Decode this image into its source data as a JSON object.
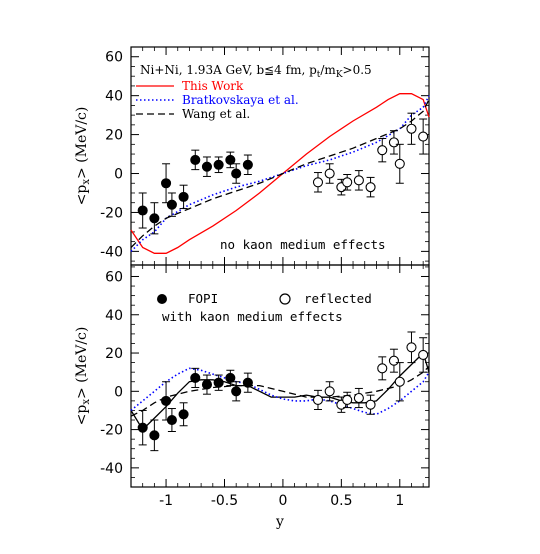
{
  "chart_data": [
    {
      "type": "line",
      "panel": "top",
      "header": "Ni+Ni, 1.93A GeV, b≦4 fm, p",
      "header_sub1": "t",
      "header_mid": "/m",
      "header_sub2": "K",
      "header_tail": ">0.5",
      "annotation": "no kaon medium effects",
      "ylabel": "<p",
      "ylabel_sub": "x",
      "ylabel_tail": "> (MeV/c)",
      "xlim": [
        -1.3,
        1.25
      ],
      "ylim": [
        -47,
        65
      ],
      "yticks": [
        -40,
        -20,
        0,
        20,
        40,
        60
      ],
      "xticks": [
        -1,
        -0.5,
        0,
        0.5,
        1
      ],
      "legend": [
        {
          "label": "This Work",
          "color": "#ff0000",
          "style": "solid"
        },
        {
          "label": "Bratkovskaya et al.",
          "color": "#0000ff",
          "style": "dotted"
        },
        {
          "label": "Wang et al.",
          "color": "#000000",
          "style": "dashed"
        }
      ],
      "series": [
        {
          "name": "This Work",
          "color": "#ff0000",
          "style": "solid",
          "x": [
            -1.3,
            -1.2,
            -1.1,
            -1.0,
            -0.9,
            -0.8,
            -0.6,
            -0.4,
            -0.2,
            0.0,
            0.2,
            0.4,
            0.6,
            0.8,
            0.9,
            1.0,
            1.1,
            1.2,
            1.25
          ],
          "y": [
            -29,
            -38,
            -41,
            -41,
            -38,
            -34,
            -27,
            -19,
            -10,
            0,
            10,
            19,
            27,
            34,
            38,
            41,
            41,
            38,
            29
          ]
        },
        {
          "name": "Bratkovskaya et al.",
          "color": "#0000ff",
          "style": "dotted",
          "x": [
            -1.3,
            -1.2,
            -1.1,
            -1.0,
            -0.8,
            -0.6,
            -0.4,
            -0.2,
            0.0,
            0.2,
            0.4,
            0.6,
            0.8,
            1.0,
            1.1,
            1.2,
            1.25
          ],
          "y": [
            -40,
            -34,
            -30,
            -23,
            -16,
            -11,
            -7,
            -4,
            0,
            4,
            7,
            11,
            16,
            23,
            30,
            34,
            40
          ]
        },
        {
          "name": "Wang et al.",
          "color": "#000000",
          "style": "dashed",
          "x": [
            -1.3,
            -1.2,
            -1.1,
            -1.0,
            -0.8,
            -0.6,
            -0.4,
            -0.2,
            0.0,
            0.2,
            0.4,
            0.6,
            0.8,
            1.0,
            1.1,
            1.2,
            1.25
          ],
          "y": [
            -38,
            -32,
            -27,
            -23,
            -18,
            -13,
            -9,
            -5,
            0,
            5,
            9,
            13,
            18,
            23,
            27,
            32,
            38
          ]
        }
      ],
      "points_filled": [
        {
          "x": -1.2,
          "y": -19,
          "err": 9
        },
        {
          "x": -1.1,
          "y": -23,
          "err": 8
        },
        {
          "x": -1.0,
          "y": -5,
          "err": 10
        },
        {
          "x": -0.95,
          "y": -16,
          "err": 6
        },
        {
          "x": -0.85,
          "y": -12,
          "err": 6
        },
        {
          "x": -0.75,
          "y": 7,
          "err": 5
        },
        {
          "x": -0.65,
          "y": 3.5,
          "err": 5
        },
        {
          "x": -0.55,
          "y": 4.5,
          "err": 4
        },
        {
          "x": -0.45,
          "y": 7,
          "err": 4
        },
        {
          "x": -0.4,
          "y": 0,
          "err": 5
        },
        {
          "x": -0.3,
          "y": 4.5,
          "err": 5
        }
      ],
      "points_open": [
        {
          "x": 0.3,
          "y": -4.5,
          "err": 5
        },
        {
          "x": 0.4,
          "y": 0,
          "err": 5
        },
        {
          "x": 0.5,
          "y": -7,
          "err": 4
        },
        {
          "x": 0.55,
          "y": -4.5,
          "err": 4
        },
        {
          "x": 0.65,
          "y": -3.5,
          "err": 5
        },
        {
          "x": 0.75,
          "y": -7,
          "err": 5
        },
        {
          "x": 0.85,
          "y": 12,
          "err": 6
        },
        {
          "x": 0.95,
          "y": 16,
          "err": 6
        },
        {
          "x": 1.0,
          "y": 5,
          "err": 10
        },
        {
          "x": 1.1,
          "y": 23,
          "err": 8
        },
        {
          "x": 1.2,
          "y": 19,
          "err": 9
        }
      ]
    },
    {
      "type": "line",
      "panel": "bottom",
      "annotation": "with kaon medium effects",
      "ylabel": "<p",
      "ylabel_sub": "x",
      "ylabel_tail": "> (MeV/c)",
      "xlabel": "y",
      "xlim": [
        -1.3,
        1.25
      ],
      "ylim": [
        -50,
        66
      ],
      "yticks": [
        -40,
        -20,
        0,
        20,
        40,
        60
      ],
      "xticks": [
        -1,
        -0.5,
        0,
        0.5,
        1
      ],
      "legend": [
        {
          "label": "FOPI",
          "marker": "filled-circle"
        },
        {
          "label": "reflected",
          "marker": "open-circle"
        }
      ],
      "series": [
        {
          "name": "This Work",
          "color": "#000000",
          "style": "solid",
          "x": [
            -1.3,
            -1.2,
            -1.1,
            -1.0,
            -0.9,
            -0.8,
            -0.7,
            -0.6,
            -0.5,
            -0.4,
            -0.3,
            -0.2,
            -0.1,
            0.0,
            0.1,
            0.2,
            0.3,
            0.4,
            0.5,
            0.6,
            0.7,
            0.8,
            0.9,
            1.0,
            1.1,
            1.2,
            1.25
          ],
          "y": [
            -10,
            -20,
            -14,
            -8,
            -1,
            5,
            6,
            6,
            5,
            3,
            3,
            0,
            -3,
            -3,
            -3,
            -2,
            -3,
            -3,
            -5,
            -6,
            -6,
            -5,
            1,
            8,
            14,
            20,
            10
          ]
        },
        {
          "name": "Bratkovskaya et al.",
          "color": "#0000ff",
          "style": "dotted",
          "x": [
            -1.3,
            -1.2,
            -1.1,
            -1.0,
            -0.9,
            -0.8,
            -0.7,
            -0.6,
            -0.5,
            -0.4,
            -0.3,
            -0.2,
            -0.1,
            0.0,
            0.1,
            0.2,
            0.3,
            0.4,
            0.5,
            0.6,
            0.7,
            0.8,
            0.9,
            1.0,
            1.1,
            1.2,
            1.25
          ],
          "y": [
            -10,
            -5,
            0,
            5,
            9,
            12,
            11,
            9,
            7,
            5,
            4,
            1,
            -2,
            -4,
            -5,
            -5,
            -4,
            -5,
            -7,
            -9,
            -11,
            -12,
            -9,
            -5,
            0,
            5,
            10
          ]
        },
        {
          "name": "Wang et al.",
          "color": "#000000",
          "style": "dashed",
          "x": [
            -1.3,
            -1.2,
            -1.1,
            -1.0,
            -0.8,
            -0.6,
            -0.4,
            -0.2,
            0.0,
            0.2,
            0.4,
            0.6,
            0.8,
            1.0,
            1.1,
            1.2,
            1.25
          ],
          "y": [
            -13,
            -10,
            -6,
            -3,
            0,
            2,
            3,
            3,
            0,
            -3,
            -3,
            -2,
            0,
            3,
            6,
            10,
            13
          ]
        }
      ],
      "points_filled": [
        {
          "x": -1.2,
          "y": -19,
          "err": 9
        },
        {
          "x": -1.1,
          "y": -23,
          "err": 8
        },
        {
          "x": -1.0,
          "y": -5,
          "err": 10
        },
        {
          "x": -0.95,
          "y": -15,
          "err": 6
        },
        {
          "x": -0.85,
          "y": -12,
          "err": 6
        },
        {
          "x": -0.75,
          "y": 7,
          "err": 5
        },
        {
          "x": -0.65,
          "y": 3.5,
          "err": 5
        },
        {
          "x": -0.55,
          "y": 4.5,
          "err": 4
        },
        {
          "x": -0.45,
          "y": 7,
          "err": 4
        },
        {
          "x": -0.4,
          "y": 0,
          "err": 5
        },
        {
          "x": -0.3,
          "y": 4.5,
          "err": 5
        }
      ],
      "points_open": [
        {
          "x": 0.3,
          "y": -4.5,
          "err": 5
        },
        {
          "x": 0.4,
          "y": 0,
          "err": 5
        },
        {
          "x": 0.5,
          "y": -7,
          "err": 4
        },
        {
          "x": 0.55,
          "y": -4.5,
          "err": 4
        },
        {
          "x": 0.65,
          "y": -3.5,
          "err": 5
        },
        {
          "x": 0.75,
          "y": -7,
          "err": 5
        },
        {
          "x": 0.85,
          "y": 12,
          "err": 6
        },
        {
          "x": 0.95,
          "y": 16,
          "err": 6
        },
        {
          "x": 1.0,
          "y": 5,
          "err": 10
        },
        {
          "x": 1.1,
          "y": 23,
          "err": 8
        },
        {
          "x": 1.2,
          "y": 19,
          "err": 9
        }
      ]
    }
  ]
}
